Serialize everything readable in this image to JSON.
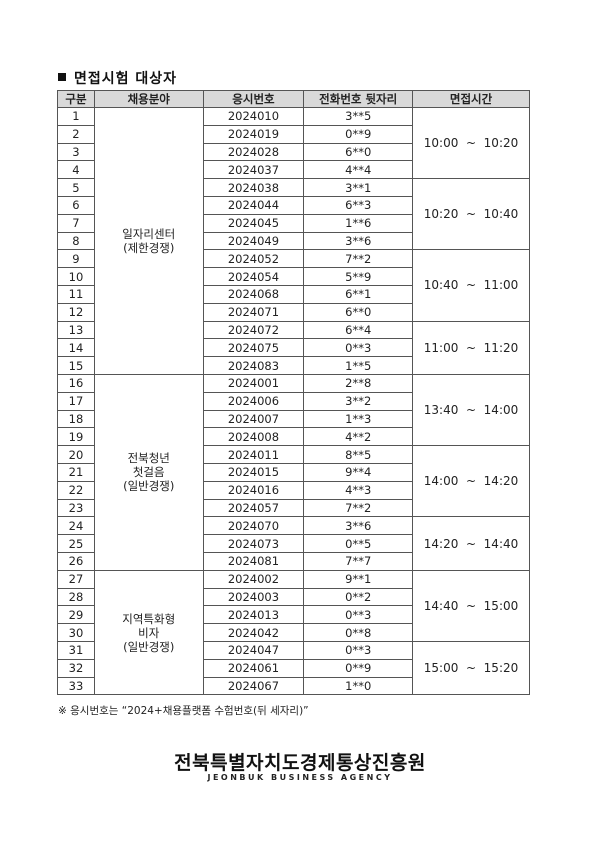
{
  "title": "면접시험 대상자",
  "table": {
    "headers": [
      "구분",
      "채용분야",
      "응시번호",
      "전화번호 뒷자리",
      "면접시간"
    ],
    "categories": [
      {
        "label": "일자리센터\n(제한경쟁)",
        "rows": 15
      },
      {
        "label": "전북청년\n첫걸음\n(일반경쟁)",
        "rows": 11
      },
      {
        "label": "지역특화형\n비자\n(일반경쟁)",
        "rows": 7
      }
    ],
    "time_slots": [
      {
        "label": "10:00  ~  10:20",
        "rows": 4
      },
      {
        "label": "10:20  ~  10:40",
        "rows": 4
      },
      {
        "label": "10:40  ~  11:00",
        "rows": 4
      },
      {
        "label": "11:00  ~  11:20",
        "rows": 3
      },
      {
        "label": "13:40  ~  14:00",
        "rows": 4
      },
      {
        "label": "14:00  ~  14:20",
        "rows": 4
      },
      {
        "label": "14:20  ~  14:40",
        "rows": 3
      },
      {
        "label": "14:40  ~  15:00",
        "rows": 4
      },
      {
        "label": "15:00  ~  15:20",
        "rows": 3
      }
    ],
    "rows": [
      {
        "no": "1",
        "id": "2024010",
        "phone": "3**5"
      },
      {
        "no": "2",
        "id": "2024019",
        "phone": "0**9"
      },
      {
        "no": "3",
        "id": "2024028",
        "phone": "6**0"
      },
      {
        "no": "4",
        "id": "2024037",
        "phone": "4**4"
      },
      {
        "no": "5",
        "id": "2024038",
        "phone": "3**1"
      },
      {
        "no": "6",
        "id": "2024044",
        "phone": "6**3"
      },
      {
        "no": "7",
        "id": "2024045",
        "phone": "1**6"
      },
      {
        "no": "8",
        "id": "2024049",
        "phone": "3**6"
      },
      {
        "no": "9",
        "id": "2024052",
        "phone": "7**2"
      },
      {
        "no": "10",
        "id": "2024054",
        "phone": "5**9"
      },
      {
        "no": "11",
        "id": "2024068",
        "phone": "6**1"
      },
      {
        "no": "12",
        "id": "2024071",
        "phone": "6**0"
      },
      {
        "no": "13",
        "id": "2024072",
        "phone": "6**4"
      },
      {
        "no": "14",
        "id": "2024075",
        "phone": "0**3"
      },
      {
        "no": "15",
        "id": "2024083",
        "phone": "1**5"
      },
      {
        "no": "16",
        "id": "2024001",
        "phone": "2**8"
      },
      {
        "no": "17",
        "id": "2024006",
        "phone": "3**2"
      },
      {
        "no": "18",
        "id": "2024007",
        "phone": "1**3"
      },
      {
        "no": "19",
        "id": "2024008",
        "phone": "4**2"
      },
      {
        "no": "20",
        "id": "2024011",
        "phone": "8**5"
      },
      {
        "no": "21",
        "id": "2024015",
        "phone": "9**4"
      },
      {
        "no": "22",
        "id": "2024016",
        "phone": "4**3"
      },
      {
        "no": "23",
        "id": "2024057",
        "phone": "7**2"
      },
      {
        "no": "24",
        "id": "2024070",
        "phone": "3**6"
      },
      {
        "no": "25",
        "id": "2024073",
        "phone": "0**5"
      },
      {
        "no": "26",
        "id": "2024081",
        "phone": "7**7"
      },
      {
        "no": "27",
        "id": "2024002",
        "phone": "9**1"
      },
      {
        "no": "28",
        "id": "2024003",
        "phone": "0**2"
      },
      {
        "no": "29",
        "id": "2024013",
        "phone": "0**3"
      },
      {
        "no": "30",
        "id": "2024042",
        "phone": "0**8"
      },
      {
        "no": "31",
        "id": "2024047",
        "phone": "0**3"
      },
      {
        "no": "32",
        "id": "2024061",
        "phone": "0**9"
      },
      {
        "no": "33",
        "id": "2024067",
        "phone": "1**0"
      }
    ]
  },
  "note": "※  응시번호는 “2024+채용플랫폼 수험번호(뒤 세자리)”",
  "logo": {
    "name": "전북특별자치도경제통상진흥원",
    "subtitle": "JEONBUK BUSINESS AGENCY"
  }
}
